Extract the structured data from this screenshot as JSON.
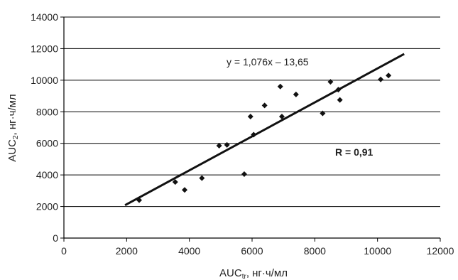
{
  "chart_data": {
    "type": "scatter",
    "xlabel": {
      "main": "AUC",
      "sub": "tr",
      "unit": ", нг·ч/мл"
    },
    "ylabel": {
      "main": "AUC",
      "sub": "2",
      "unit": ", нг·ч/мл"
    },
    "xlim": [
      0,
      12000
    ],
    "ylim": [
      0,
      14000
    ],
    "x_ticks": [
      "0",
      "2000",
      "4000",
      "6000",
      "8000",
      "10000",
      "12000"
    ],
    "y_ticks": [
      "0",
      "2000",
      "4000",
      "6000",
      "8000",
      "10000",
      "12000",
      "14000"
    ],
    "grid": "horizontal",
    "legend": "none",
    "colors": {
      "points": "#111111",
      "trend": "#111111",
      "grid": "#000000"
    },
    "points": [
      {
        "x": 2400,
        "y": 2400
      },
      {
        "x": 3550,
        "y": 3550
      },
      {
        "x": 3850,
        "y": 3050
      },
      {
        "x": 4400,
        "y": 3800
      },
      {
        "x": 4950,
        "y": 5850
      },
      {
        "x": 5200,
        "y": 5900
      },
      {
        "x": 5750,
        "y": 4050
      },
      {
        "x": 5950,
        "y": 7700
      },
      {
        "x": 6050,
        "y": 6550
      },
      {
        "x": 6400,
        "y": 8400
      },
      {
        "x": 6900,
        "y": 9600
      },
      {
        "x": 6950,
        "y": 7700
      },
      {
        "x": 7400,
        "y": 9100
      },
      {
        "x": 8250,
        "y": 7900
      },
      {
        "x": 8500,
        "y": 9900
      },
      {
        "x": 8750,
        "y": 9400
      },
      {
        "x": 8800,
        "y": 8750
      },
      {
        "x": 10100,
        "y": 10050
      },
      {
        "x": 10350,
        "y": 10300
      }
    ],
    "trendline": {
      "slope": 1.076,
      "intercept": -13.65,
      "x_start": 1950,
      "x_end": 10850
    },
    "annotations": {
      "equation": "y = 1,076x – 13,65",
      "r_value": "R = 0,91"
    }
  }
}
